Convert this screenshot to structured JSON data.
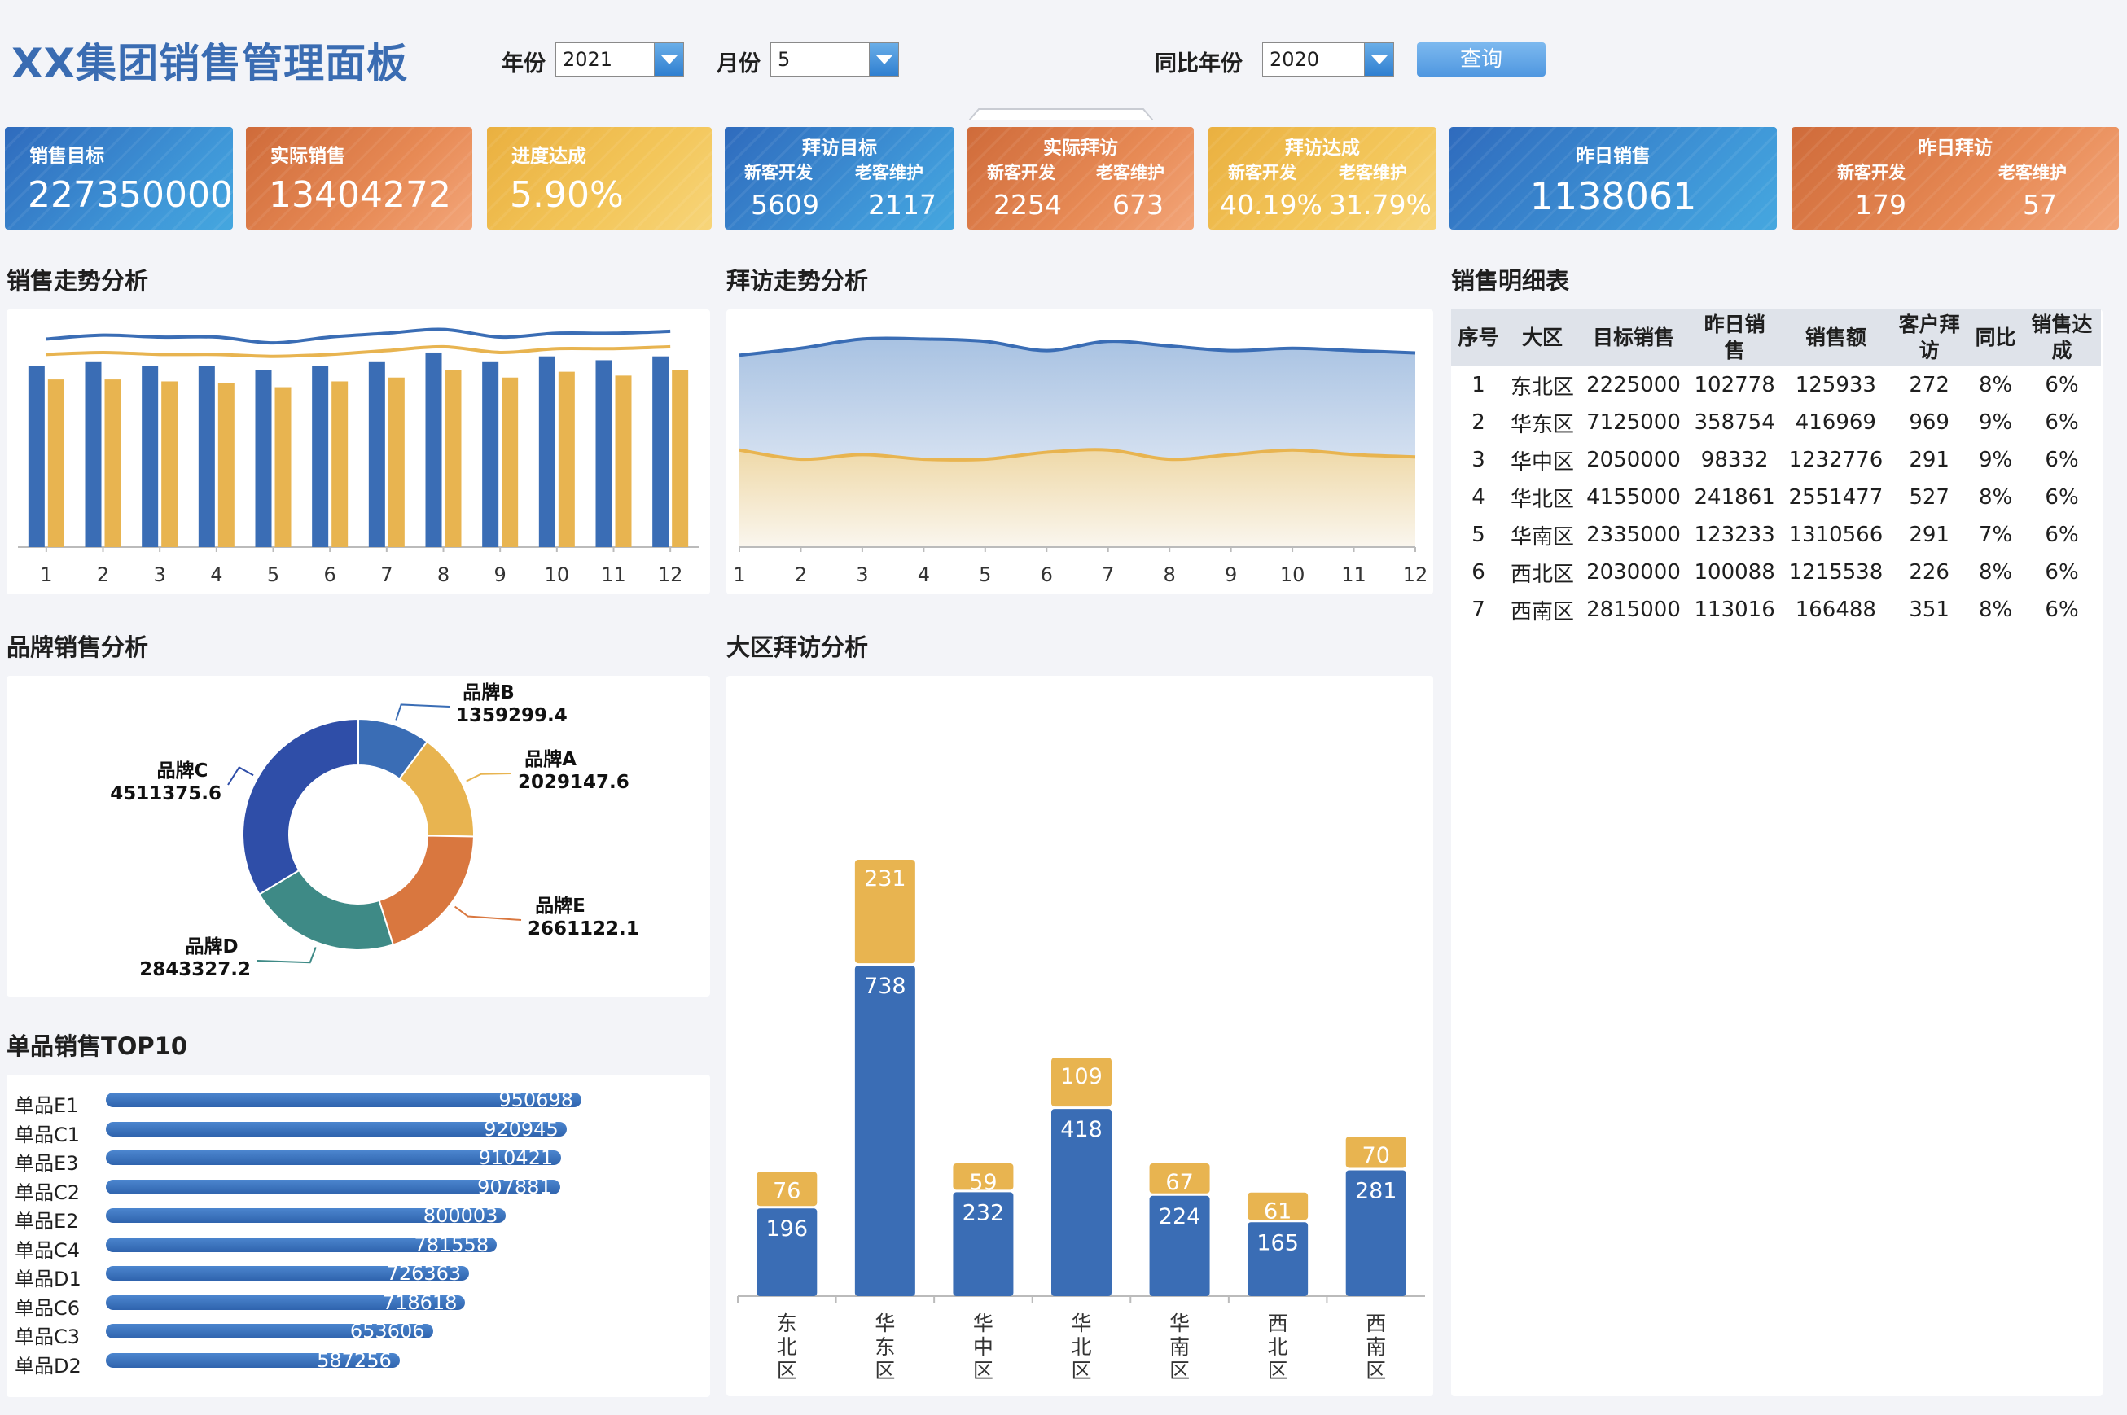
{
  "header": {
    "title": "XX集团销售管理面板",
    "year_label": "年份",
    "year_value": "2021",
    "month_label": "月份",
    "month_value": "5",
    "compare_label": "同比年份",
    "compare_value": "2020",
    "query_label": "查询"
  },
  "kpis": {
    "sales_target": {
      "title": "销售目标",
      "value": "227350000"
    },
    "actual_sales": {
      "title": "实际销售",
      "value": "13404272"
    },
    "progress": {
      "title": "进度达成",
      "value": "5.90%"
    },
    "visit_target": {
      "title": "拜访目标",
      "new_label": "新客开发",
      "old_label": "老客维护",
      "new_value": "5609",
      "old_value": "2117"
    },
    "actual_visit": {
      "title": "实际拜访",
      "new_label": "新客开发",
      "old_label": "老客维护",
      "new_value": "2254",
      "old_value": "673"
    },
    "visit_rate": {
      "title": "拜访达成",
      "new_label": "新客开发",
      "old_label": "老客维护",
      "new_value": "40.19%",
      "old_value": "31.79%"
    },
    "yesterday_sales": {
      "title": "昨日销售",
      "value": "1138061"
    },
    "yesterday_visit": {
      "title": "昨日拜访",
      "new_label": "新客开发",
      "old_label": "老客维护",
      "new_value": "179",
      "old_value": "57"
    }
  },
  "sections": {
    "sales_trend": "销售走势分析",
    "visit_trend": "拜访走势分析",
    "detail_table": "销售明细表",
    "brand": "品牌销售分析",
    "region_visit": "大区拜访分析",
    "top10": "单品销售TOP10"
  },
  "colors": {
    "blue": "#3a6db5",
    "gold": "#e8b450",
    "teal": "#3e8a86",
    "orange": "#d9773f",
    "navy": "#2f4ea8"
  },
  "table": {
    "headers": [
      "序号",
      "大区",
      "目标销售",
      "昨日销\n售",
      "销售额",
      "客户拜\n访",
      "同比",
      "销售达\n成"
    ],
    "rows": [
      [
        "1",
        "东北区",
        "2225000",
        "102778",
        "125933",
        "272",
        "8%",
        "6%"
      ],
      [
        "2",
        "华东区",
        "7125000",
        "358754",
        "416969",
        "969",
        "9%",
        "6%"
      ],
      [
        "3",
        "华中区",
        "2050000",
        "98332",
        "1232776",
        "291",
        "9%",
        "6%"
      ],
      [
        "4",
        "华北区",
        "4155000",
        "241861",
        "2551477",
        "527",
        "8%",
        "6%"
      ],
      [
        "5",
        "华南区",
        "2335000",
        "123233",
        "1310566",
        "291",
        "7%",
        "6%"
      ],
      [
        "6",
        "西北区",
        "2030000",
        "100088",
        "1215538",
        "226",
        "8%",
        "6%"
      ],
      [
        "7",
        "西南区",
        "2815000",
        "113016",
        "166488",
        "351",
        "8%",
        "6%"
      ]
    ]
  },
  "chart_data": [
    {
      "type": "bar",
      "categories": [
        "1",
        "2",
        "3",
        "4",
        "5",
        "6",
        "7",
        "8",
        "9",
        "10",
        "11",
        "12"
      ],
      "series": [
        {
          "values": [
            94,
            96,
            94,
            94,
            92,
            94,
            96,
            101,
            96,
            99,
            97,
            99
          ]
        },
        {
          "values": [
            87,
            87,
            86,
            85,
            83,
            86,
            88,
            92,
            88,
            91,
            89,
            92
          ]
        },
        {
          "values": [
            108,
            110,
            109,
            109,
            106,
            109,
            111,
            113,
            109,
            111,
            111,
            112
          ]
        },
        {
          "values": [
            100,
            101,
            100,
            100,
            99,
            100,
            102,
            104,
            101,
            103,
            103,
            104
          ]
        }
      ],
      "ylim": [
        0,
        120
      ],
      "grid": false
    },
    {
      "type": "area",
      "x": [
        "1",
        "2",
        "3",
        "4",
        "5",
        "6",
        "7",
        "8",
        "9",
        "10",
        "11",
        "12"
      ],
      "series": [
        {
          "values": [
            83,
            86,
            90,
            90,
            89,
            85,
            89,
            87,
            85,
            86,
            85,
            84
          ]
        },
        {
          "values": [
            42,
            38,
            40,
            38,
            38,
            41,
            42,
            38,
            40,
            42,
            40,
            39
          ]
        }
      ],
      "ylim": [
        0,
        100
      ]
    },
    {
      "type": "pie",
      "categories": [
        "品牌B",
        "品牌A",
        "品牌E",
        "品牌D",
        "品牌C"
      ],
      "values": [
        1359299.4,
        2029147.6,
        2661122.1,
        2843327.2,
        4511375.6
      ],
      "donut": true
    },
    {
      "type": "bar",
      "orientation": "horizontal",
      "categories": [
        "单品E1",
        "单品C1",
        "单品E3",
        "单品C2",
        "单品E2",
        "单品C4",
        "单品D1",
        "单品C6",
        "单品C3",
        "单品D2"
      ],
      "values": [
        950698,
        920945,
        910421,
        907881,
        800003,
        781558,
        726363,
        718618,
        653606,
        587256
      ]
    },
    {
      "type": "bar",
      "stacked": true,
      "categories": [
        "东北区",
        "华东区",
        "华中区",
        "华北区",
        "华南区",
        "西北区",
        "西南区"
      ],
      "series": [
        {
          "values": [
            196,
            738,
            232,
            418,
            224,
            165,
            281
          ]
        },
        {
          "values": [
            76,
            231,
            59,
            109,
            67,
            61,
            70
          ]
        }
      ],
      "ylim": [
        0,
        1000
      ]
    }
  ]
}
